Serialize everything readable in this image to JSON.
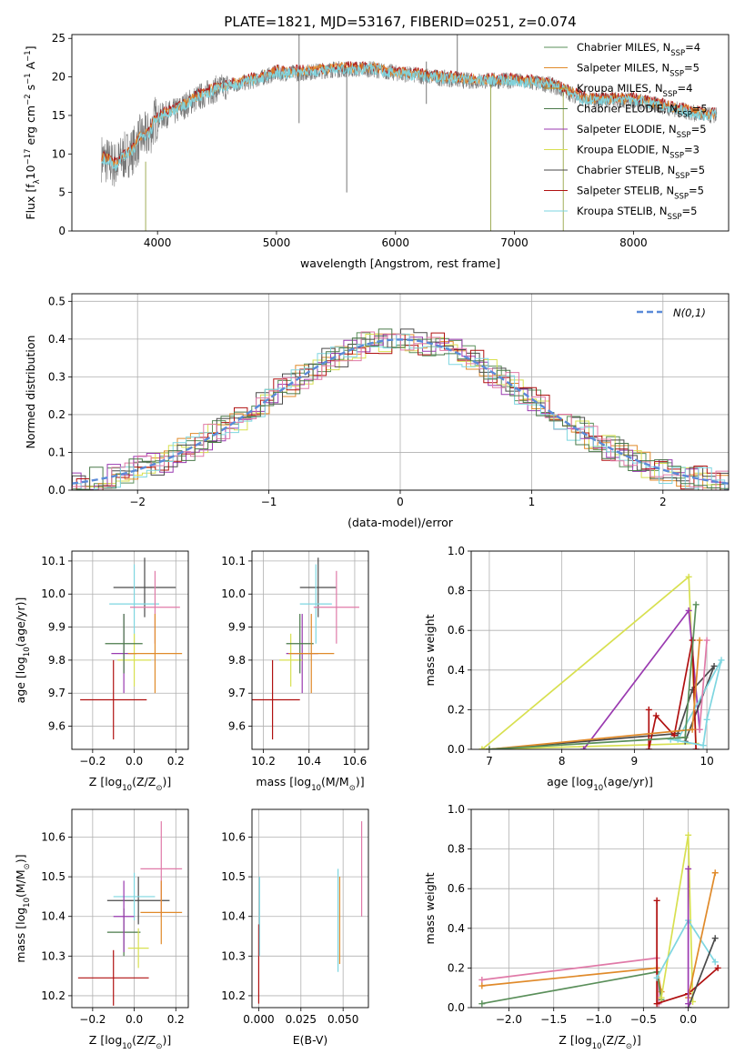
{
  "figure": {
    "title": "PLATE=1821, MJD=53167, FIBERID=0251, z=0.074"
  },
  "colors": {
    "chabrier_miles": "#5a8f5a",
    "salpeter_miles": "#e08a2a",
    "kroupa_miles": "#c8880c",
    "chabrier_elodie": "#4a7a4a",
    "salpeter_elodie": "#9a3ab0",
    "kroupa_elodie": "#d8e050",
    "chabrier_stelib": "#4a4a4a",
    "salpeter_stelib": "#b01010",
    "kroupa_stelib": "#7ed6e0",
    "pink": "#e07aa8",
    "gaussian": "#5a8ad8",
    "spectrum": "#777777"
  },
  "chart_data": [
    {
      "id": "spectrum",
      "type": "line",
      "xlabel": "wavelength [Angstrom, rest frame]",
      "ylabel_parts": [
        "Flux [f",
        "λ",
        "10",
        "−17",
        " erg cm",
        "−2",
        " s",
        "−1",
        " A",
        "−1",
        "]"
      ],
      "xlim": [
        3280,
        8800
      ],
      "ylim": [
        0,
        25.5
      ],
      "xticks": [
        4000,
        5000,
        6000,
        7000,
        8000
      ],
      "xtick_labels": [
        "4000",
        "5000",
        "6000",
        "7000",
        "8000"
      ],
      "yticks": [
        0,
        5,
        10,
        15,
        20,
        25
      ],
      "ytick_labels": [
        "0",
        "5",
        "10",
        "15",
        "20",
        "25"
      ],
      "grid": false,
      "legend_position": "top-right",
      "legend": [
        {
          "name": "Chabrier MILES",
          "n": "4",
          "color_key": "chabrier_miles"
        },
        {
          "name": "Salpeter MILES",
          "n": "5",
          "color_key": "salpeter_miles"
        },
        {
          "name": "Kroupa MILES",
          "n": "4",
          "color_key": "kroupa_miles"
        },
        {
          "name": "Chabrier ELODIE",
          "n": "5",
          "color_key": "chabrier_elodie"
        },
        {
          "name": "Salpeter ELODIE",
          "n": "5",
          "color_key": "salpeter_elodie"
        },
        {
          "name": "Kroupa ELODIE",
          "n": "3",
          "color_key": "kroupa_elodie"
        },
        {
          "name": "Chabrier STELIB",
          "n": "5",
          "color_key": "chabrier_stelib"
        },
        {
          "name": "Salpeter STELIB",
          "n": "5",
          "color_key": "salpeter_stelib"
        },
        {
          "name": "Kroupa STELIB",
          "n": "5",
          "color_key": "kroupa_stelib"
        }
      ],
      "legend_nssp_label": "N",
      "legend_nssp_sub": "SSP",
      "continuum": [
        [
          3530,
          9.5
        ],
        [
          3650,
          8.5
        ],
        [
          3700,
          9.5
        ],
        [
          3800,
          10.5
        ],
        [
          3850,
          12
        ],
        [
          3930,
          12.5
        ],
        [
          3980,
          14.5
        ],
        [
          4050,
          15
        ],
        [
          4150,
          15.5
        ],
        [
          4300,
          17
        ],
        [
          4500,
          18.5
        ],
        [
          4800,
          19.5
        ],
        [
          5000,
          20.5
        ],
        [
          5200,
          20.5
        ],
        [
          5500,
          21
        ],
        [
          5800,
          21
        ],
        [
          6000,
          20.5
        ],
        [
          6300,
          20
        ],
        [
          6600,
          19.5
        ],
        [
          7000,
          19.5
        ],
        [
          7300,
          19
        ],
        [
          7600,
          17
        ],
        [
          8000,
          17
        ],
        [
          8300,
          16
        ],
        [
          8600,
          15
        ],
        [
          8700,
          15
        ]
      ],
      "spikes": [
        {
          "x": 5190,
          "y1": 21.5,
          "y2": 25.5
        },
        {
          "x": 5190,
          "y1": 20.5,
          "y2": 14
        },
        {
          "x": 5590,
          "y1": 21,
          "y2": 5
        },
        {
          "x": 3900,
          "y1": 9,
          "y2": 0
        },
        {
          "x": 6800,
          "y1": 19,
          "y2": 0
        },
        {
          "x": 7410,
          "y1": 18,
          "y2": 0
        },
        {
          "x": 6260,
          "y1": 22,
          "y2": 16.5
        },
        {
          "x": 6520,
          "y1": 25.5,
          "y2": 20
        }
      ]
    },
    {
      "id": "residuals",
      "type": "histogram",
      "xlabel": "(data-model)/error",
      "ylabel": "Normed distribution",
      "xlim": [
        -2.5,
        2.5
      ],
      "ylim": [
        0,
        0.52
      ],
      "xticks": [
        -2,
        -1,
        0,
        1,
        2
      ],
      "xtick_labels": [
        "−2",
        "−1",
        "0",
        "1",
        "2"
      ],
      "yticks": [
        0,
        0.1,
        0.2,
        0.3,
        0.4,
        0.5
      ],
      "ytick_labels": [
        "0.0",
        "0.1",
        "0.2",
        "0.3",
        "0.4",
        "0.5"
      ],
      "grid": true,
      "legend_position": "top-right",
      "gaussian_label": "N(0,1)",
      "bin_width": 0.1
    },
    {
      "id": "age_vs_Z",
      "type": "errorbar",
      "xlabel_parts": [
        "Z [log",
        "10",
        "(Z/Z",
        "⊙",
        ")]"
      ],
      "ylabel_parts": [
        "age  [log",
        "10",
        "(age/yr)]"
      ],
      "xlim": [
        -0.3,
        0.26
      ],
      "ylim": [
        9.53,
        10.13
      ],
      "xticks": [
        -0.2,
        0.0,
        0.2
      ],
      "xtick_labels": [
        "−0.2",
        "0.0",
        "0.2"
      ],
      "yticks": [
        9.6,
        9.7,
        9.8,
        9.9,
        10.0,
        10.1
      ],
      "ytick_labels": [
        "9.6",
        "9.7",
        "9.8",
        "9.9",
        "10.0",
        "10.1"
      ],
      "grid": true,
      "points": [
        {
          "x": -0.1,
          "y": 9.68,
          "xerr": 0.16,
          "yerr": 0.12,
          "color_key": "salpeter_stelib"
        },
        {
          "x": 0.05,
          "y": 10.02,
          "xerr": 0.15,
          "yerr": 0.09,
          "color_key": "chabrier_stelib"
        },
        {
          "x": 0.0,
          "y": 9.97,
          "xerr": 0.12,
          "yerr": 0.12,
          "color_key": "kroupa_stelib"
        },
        {
          "x": -0.05,
          "y": 9.82,
          "xerr": 0.06,
          "yerr": 0.12,
          "color_key": "salpeter_elodie"
        },
        {
          "x": 0.0,
          "y": 9.8,
          "xerr": 0.08,
          "yerr": 0.08,
          "color_key": "kroupa_elodie"
        },
        {
          "x": -0.05,
          "y": 9.85,
          "xerr": 0.09,
          "yerr": 0.09,
          "color_key": "chabrier_elodie"
        },
        {
          "x": 0.1,
          "y": 9.96,
          "xerr": 0.12,
          "yerr": 0.11,
          "color_key": "pink"
        },
        {
          "x": 0.1,
          "y": 9.82,
          "xerr": 0.13,
          "yerr": 0.12,
          "color_key": "salpeter_miles"
        }
      ]
    },
    {
      "id": "age_vs_mass",
      "type": "errorbar",
      "xlabel_parts": [
        "mass [log",
        "10",
        "(M/M",
        "⊙",
        ")]"
      ],
      "ylabel_parts": [],
      "xlim": [
        10.15,
        10.66
      ],
      "ylim": [
        9.53,
        10.13
      ],
      "xticks": [
        10.2,
        10.4,
        10.6
      ],
      "xtick_labels": [
        "10.2",
        "10.4",
        "10.6"
      ],
      "yticks": [
        9.6,
        9.7,
        9.8,
        9.9,
        10.0,
        10.1
      ],
      "ytick_labels": [
        "9.6",
        "9.7",
        "9.8",
        "9.9",
        "10.0",
        "10.1"
      ],
      "grid": true,
      "points": [
        {
          "x": 10.24,
          "y": 9.68,
          "xerr": 0.12,
          "yerr": 0.12,
          "color_key": "salpeter_stelib"
        },
        {
          "x": 10.44,
          "y": 10.02,
          "xerr": 0.08,
          "yerr": 0.09,
          "color_key": "chabrier_stelib"
        },
        {
          "x": 10.43,
          "y": 9.97,
          "xerr": 0.07,
          "yerr": 0.12,
          "color_key": "kroupa_stelib"
        },
        {
          "x": 10.37,
          "y": 9.82,
          "xerr": 0.07,
          "yerr": 0.12,
          "color_key": "salpeter_elodie"
        },
        {
          "x": 10.32,
          "y": 9.8,
          "xerr": 0.05,
          "yerr": 0.08,
          "color_key": "kroupa_elodie"
        },
        {
          "x": 10.36,
          "y": 9.85,
          "xerr": 0.06,
          "yerr": 0.09,
          "color_key": "chabrier_elodie"
        },
        {
          "x": 10.52,
          "y": 9.96,
          "xerr": 0.1,
          "yerr": 0.11,
          "color_key": "pink"
        },
        {
          "x": 10.41,
          "y": 9.82,
          "xerr": 0.1,
          "yerr": 0.12,
          "color_key": "salpeter_miles"
        }
      ]
    },
    {
      "id": "weight_vs_age",
      "type": "line",
      "xlabel_parts": [
        "age  [log",
        "10",
        "(age/yr)]"
      ],
      "ylabel": "mass weight",
      "xlim": [
        6.75,
        10.3
      ],
      "ylim": [
        0,
        1.0
      ],
      "xticks": [
        7,
        8,
        9,
        10
      ],
      "xtick_labels": [
        "7",
        "8",
        "9",
        "10"
      ],
      "yticks": [
        0,
        0.2,
        0.4,
        0.6,
        0.8,
        1.0
      ],
      "ytick_labels": [
        "0.0",
        "0.2",
        "0.4",
        "0.6",
        "0.8",
        "1.0"
      ],
      "grid": true,
      "series": [
        {
          "color_key": "kroupa_elodie",
          "points": [
            [
              6.9,
              0.0
            ],
            [
              9.75,
              0.87
            ],
            [
              9.85,
              0.03
            ],
            [
              6.9,
              0.0
            ]
          ]
        },
        {
          "color_key": "salpeter_elodie",
          "points": [
            [
              8.3,
              0.0
            ],
            [
              9.75,
              0.7
            ],
            [
              9.9,
              0.1
            ]
          ]
        },
        {
          "color_key": "chabrier_stelib",
          "points": [
            [
              7.0,
              0.0
            ],
            [
              9.6,
              0.08
            ],
            [
              9.8,
              0.3
            ],
            [
              10.1,
              0.42
            ],
            [
              9.7,
              0.04
            ]
          ]
        },
        {
          "color_key": "salpeter_stelib",
          "points": [
            [
              9.2,
              0.2
            ],
            [
              9.2,
              0.0
            ],
            [
              9.3,
              0.17
            ],
            [
              9.55,
              0.07
            ],
            [
              9.8,
              0.55
            ],
            [
              9.85,
              0.0
            ]
          ]
        },
        {
          "color_key": "kroupa_stelib",
          "points": [
            [
              9.5,
              0.05
            ],
            [
              9.95,
              0.02
            ],
            [
              10.0,
              0.15
            ],
            [
              10.2,
              0.45
            ],
            [
              9.6,
              0.05
            ]
          ]
        },
        {
          "color_key": "salpeter_miles",
          "points": [
            [
              7.0,
              0.0
            ],
            [
              9.8,
              0.1
            ],
            [
              9.9,
              0.55
            ]
          ]
        },
        {
          "color_key": "chabrier_miles",
          "points": [
            [
              7.0,
              0.0
            ],
            [
              9.7,
              0.06
            ],
            [
              9.85,
              0.73
            ]
          ]
        },
        {
          "color_key": "pink",
          "points": [
            [
              9.9,
              0.1
            ],
            [
              10.0,
              0.55
            ]
          ]
        }
      ]
    },
    {
      "id": "mass_vs_Z",
      "type": "errorbar",
      "xlabel_parts": [
        "Z [log",
        "10",
        "(Z/Z",
        "⊙",
        ")]"
      ],
      "ylabel_parts": [
        "mass [log",
        "10",
        "(M/M",
        "⊙",
        ")]"
      ],
      "xlim": [
        -0.3,
        0.26
      ],
      "ylim": [
        10.17,
        10.67
      ],
      "xticks": [
        -0.2,
        0.0,
        0.2
      ],
      "xtick_labels": [
        "−0.2",
        "0.0",
        "0.2"
      ],
      "yticks": [
        10.2,
        10.3,
        10.4,
        10.5,
        10.6
      ],
      "ytick_labels": [
        "10.2",
        "10.3",
        "10.4",
        "10.5",
        "10.6"
      ],
      "grid": true,
      "points": [
        {
          "x": -0.1,
          "y": 10.245,
          "xerr": 0.17,
          "yerr": 0.07,
          "color_key": "salpeter_stelib"
        },
        {
          "x": 0.02,
          "y": 10.44,
          "xerr": 0.15,
          "yerr": 0.06,
          "color_key": "chabrier_stelib"
        },
        {
          "x": 0.0,
          "y": 10.45,
          "xerr": 0.1,
          "yerr": 0.06,
          "color_key": "kroupa_stelib"
        },
        {
          "x": -0.05,
          "y": 10.36,
          "xerr": 0.08,
          "yerr": 0.06,
          "color_key": "chabrier_elodie"
        },
        {
          "x": 0.02,
          "y": 10.32,
          "xerr": 0.05,
          "yerr": 0.05,
          "color_key": "kroupa_elodie"
        },
        {
          "x": -0.05,
          "y": 10.4,
          "xerr": 0.05,
          "yerr": 0.09,
          "color_key": "salpeter_elodie"
        },
        {
          "x": 0.13,
          "y": 10.52,
          "xerr": 0.1,
          "yerr": 0.12,
          "color_key": "pink"
        },
        {
          "x": 0.13,
          "y": 10.41,
          "xerr": 0.1,
          "yerr": 0.08,
          "color_key": "salpeter_miles"
        }
      ]
    },
    {
      "id": "mass_vs_ebv",
      "type": "errorbar",
      "xlabel": "E(B-V)",
      "ylabel_parts": [],
      "xlim": [
        -0.004,
        0.065
      ],
      "ylim": [
        10.17,
        10.67
      ],
      "xticks": [
        0.0,
        0.025,
        0.05
      ],
      "xtick_labels": [
        "0.000",
        "0.025",
        "0.050"
      ],
      "yticks": [
        10.2,
        10.3,
        10.4,
        10.5,
        10.6
      ],
      "ytick_labels": [
        "10.2",
        "10.3",
        "10.4",
        "10.5",
        "10.6"
      ],
      "grid": true,
      "points": [
        {
          "x": 0.0,
          "y": 10.28,
          "xerr": 0,
          "yerr": 0.1,
          "color_key": "salpeter_stelib"
        },
        {
          "x": 0.0005,
          "y": 10.4,
          "xerr": 0,
          "yerr": 0.1,
          "color_key": "kroupa_stelib"
        },
        {
          "x": 0.047,
          "y": 10.39,
          "xerr": 0,
          "yerr": 0.13,
          "color_key": "kroupa_stelib"
        },
        {
          "x": 0.048,
          "y": 10.39,
          "xerr": 0,
          "yerr": 0.11,
          "color_key": "salpeter_miles"
        },
        {
          "x": 0.061,
          "y": 10.52,
          "xerr": 0,
          "yerr": 0.12,
          "color_key": "pink"
        }
      ]
    },
    {
      "id": "weight_vs_Z",
      "type": "line",
      "xlabel_parts": [
        "Z [log",
        "10",
        "(Z/Z",
        "⊙",
        ")]"
      ],
      "ylabel": "mass weight",
      "xlim": [
        -2.42,
        0.45
      ],
      "ylim": [
        0,
        1.0
      ],
      "xticks": [
        -2.0,
        -1.5,
        -1.0,
        -0.5,
        0.0
      ],
      "xtick_labels": [
        "−2.0",
        "−1.5",
        "−1.0",
        "−0.5",
        "0.0"
      ],
      "yticks": [
        0,
        0.2,
        0.4,
        0.6,
        0.8,
        1.0
      ],
      "ytick_labels": [
        "0.0",
        "0.2",
        "0.4",
        "0.6",
        "0.8",
        "1.0"
      ],
      "grid": true,
      "series": [
        {
          "color_key": "pink",
          "points": [
            [
              -2.3,
              0.14
            ],
            [
              -0.35,
              0.25
            ],
            [
              -0.33,
              0.02
            ]
          ]
        },
        {
          "color_key": "salpeter_miles",
          "points": [
            [
              -2.3,
              0.11
            ],
            [
              -0.35,
              0.2
            ],
            [
              -0.3,
              0.08
            ]
          ]
        },
        {
          "color_key": "chabrier_miles",
          "points": [
            [
              -2.3,
              0.02
            ],
            [
              -0.35,
              0.18
            ],
            [
              -0.3,
              0.04
            ]
          ]
        },
        {
          "color_key": "kroupa_elodie",
          "points": [
            [
              -0.3,
              0.05
            ],
            [
              0.0,
              0.87
            ],
            [
              0.05,
              0.03
            ]
          ]
        },
        {
          "color_key": "salpeter_stelib",
          "points": [
            [
              -0.35,
              0.54
            ],
            [
              -0.35,
              0.02
            ],
            [
              0.0,
              0.07
            ],
            [
              0.33,
              0.2
            ]
          ]
        },
        {
          "color_key": "kroupa_stelib",
          "points": [
            [
              -0.35,
              0.15
            ],
            [
              0.0,
              0.44
            ],
            [
              0.3,
              0.23
            ]
          ]
        },
        {
          "color_key": "salpeter_miles",
          "points": [
            [
              0.0,
              0.05
            ],
            [
              0.3,
              0.68
            ]
          ]
        },
        {
          "color_key": "chabrier_stelib",
          "points": [
            [
              0.0,
              0.0
            ],
            [
              0.3,
              0.35
            ]
          ]
        },
        {
          "color_key": "salpeter_elodie",
          "points": [
            [
              0.0,
              0.7
            ],
            [
              0.0,
              0.02
            ]
          ]
        }
      ]
    }
  ]
}
